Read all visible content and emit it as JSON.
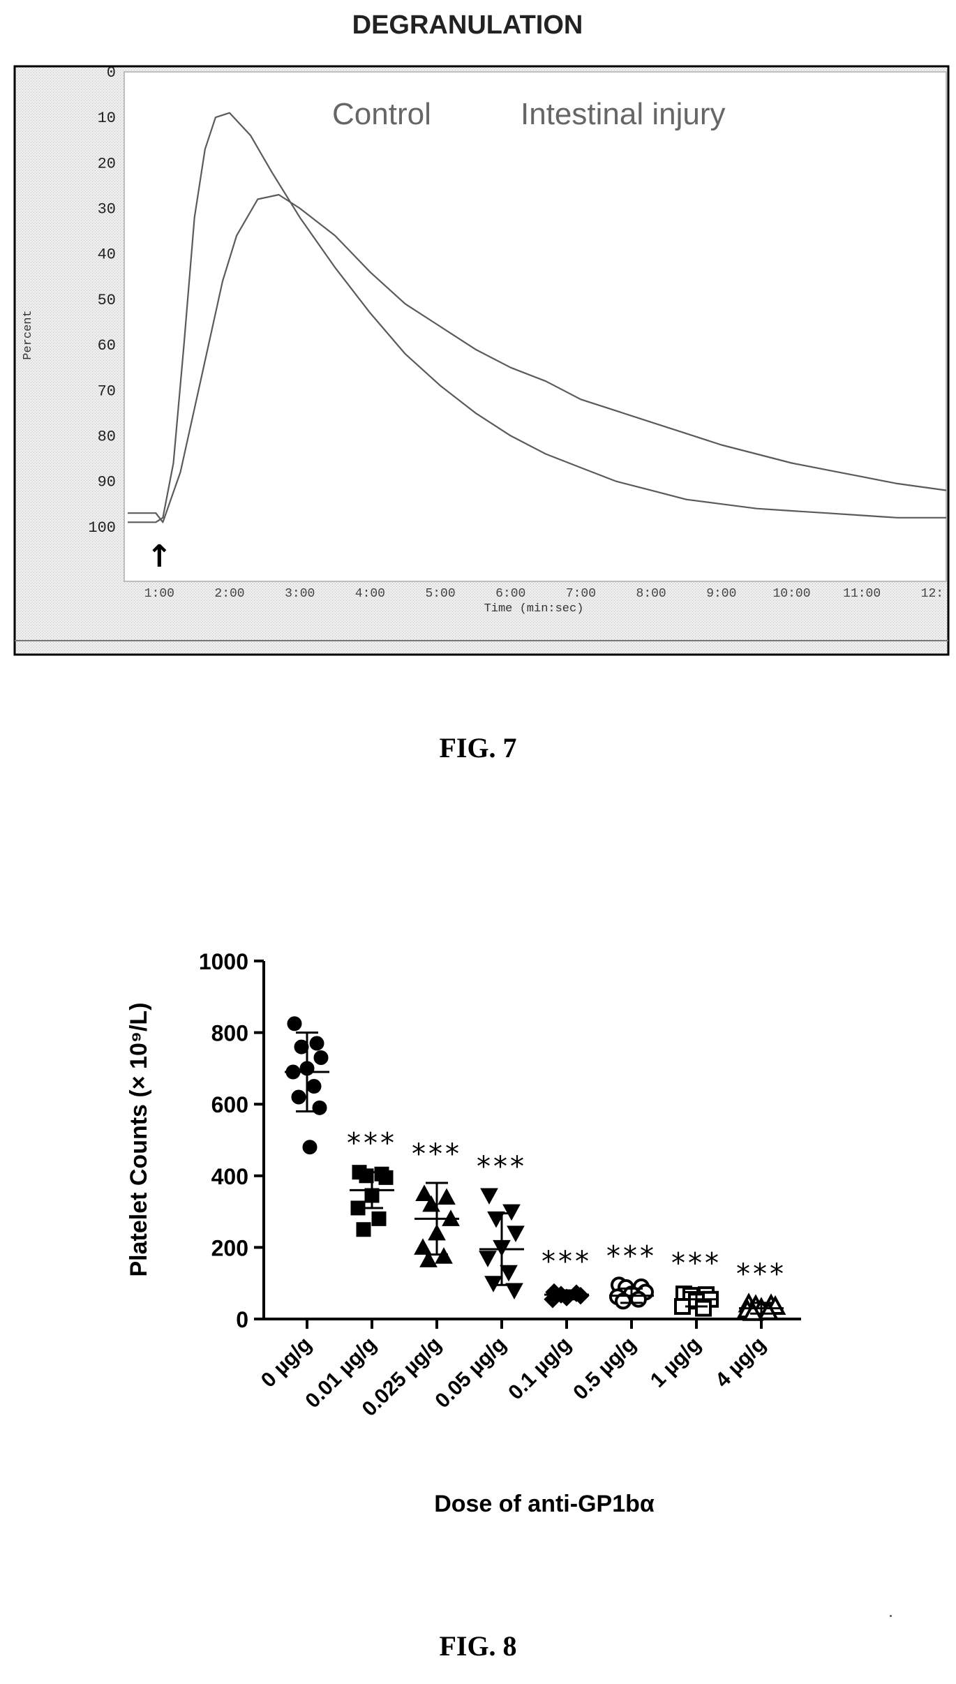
{
  "fig7": {
    "caption": "FIG. 7",
    "chart_data": {
      "type": "line",
      "title": "DEGRANULATION",
      "xlabel": "Time (min:sec)",
      "ylabel": "Percent",
      "annotations": [
        "Control",
        "Intestinal injury"
      ],
      "xlim": [
        0.5,
        12.2
      ],
      "ylim": [
        0,
        112
      ],
      "y_reversed": true,
      "x_ticks": [
        1,
        2,
        3,
        4,
        5,
        6,
        7,
        8,
        9,
        10,
        11,
        12
      ],
      "x_tick_labels": [
        "1:00",
        "2:00",
        "3:00",
        "4:00",
        "5:00",
        "6:00",
        "7:00",
        "8:00",
        "9:00",
        "10:00",
        "11:00",
        "12:"
      ],
      "y_ticks": [
        0,
        10,
        20,
        30,
        40,
        50,
        60,
        70,
        80,
        90,
        100
      ],
      "y_tick_labels": [
        "0",
        "10",
        "20",
        "30",
        "40",
        "50",
        "60",
        "70",
        "80",
        "90",
        "100"
      ],
      "marker_label": "↑",
      "marker_x": 1.0,
      "series": [
        {
          "x": [
            0.55,
            0.8,
            0.95,
            1.05,
            1.2,
            1.35,
            1.5,
            1.65,
            1.8,
            2.0,
            2.3,
            2.6,
            3.0,
            3.5,
            4.0,
            4.5,
            5.0,
            5.5,
            6.0,
            6.5,
            7.0,
            7.5,
            8.0,
            8.5,
            9.0,
            9.5,
            10.0,
            10.5,
            11.0,
            11.5,
            12.2
          ],
          "y": [
            99,
            99,
            99,
            98,
            86,
            60,
            32,
            17,
            10,
            9,
            14,
            22,
            32,
            43,
            53,
            62,
            69,
            75,
            80,
            84,
            87,
            90,
            92,
            94,
            95,
            96,
            96.5,
            97,
            97.5,
            98,
            98
          ]
        },
        {
          "x": [
            0.55,
            0.8,
            0.95,
            1.05,
            1.3,
            1.6,
            1.9,
            2.1,
            2.4,
            2.7,
            3.0,
            3.5,
            4.0,
            4.5,
            5.0,
            5.5,
            6.0,
            6.5,
            7.0,
            7.5,
            8.0,
            8.5,
            9.0,
            9.5,
            10.0,
            10.5,
            11.0,
            11.5,
            12.2
          ],
          "y": [
            97,
            97,
            97,
            99,
            88,
            67,
            46,
            36,
            28,
            27,
            30,
            36,
            44,
            51,
            56,
            61,
            65,
            68,
            72,
            74.5,
            77,
            79.5,
            82,
            84,
            86,
            87.5,
            89,
            90.5,
            92
          ]
        }
      ]
    }
  },
  "fig8": {
    "caption": "FIG. 8",
    "chart_data": {
      "type": "scatter",
      "xlabel": "Dose of anti-GP1bα",
      "ylabel": "Platelet Counts (× 10⁹/L)",
      "ylim": [
        0,
        1000
      ],
      "y_ticks": [
        0,
        200,
        400,
        600,
        800,
        1000
      ],
      "y_tick_labels": [
        "0",
        "200",
        "400",
        "600",
        "800",
        "1000"
      ],
      "categories": [
        "0 µg/g",
        "0.01 µg/g",
        "0.025 µg/g",
        "0.05 µg/g",
        "0.1 µg/g",
        "0.5 µg/g",
        "1 µg/g",
        "4 µg/g"
      ],
      "significance": [
        "",
        "***",
        "***",
        "***",
        "***",
        "***",
        "***",
        "***"
      ],
      "mean": [
        690,
        360,
        280,
        195,
        68,
        65,
        55,
        30
      ],
      "sd_low": [
        580,
        310,
        180,
        95,
        55,
        45,
        35,
        15
      ],
      "sd_high": [
        800,
        410,
        380,
        295,
        80,
        85,
        75,
        45
      ],
      "points": [
        [
          825,
          770,
          760,
          730,
          700,
          690,
          650,
          620,
          590,
          480
        ],
        [
          410,
          405,
          400,
          395,
          345,
          310,
          280,
          250
        ],
        [
          350,
          340,
          320,
          280,
          240,
          200,
          175,
          165
        ],
        [
          345,
          300,
          280,
          240,
          200,
          170,
          130,
          100,
          80
        ],
        [
          75,
          72,
          68,
          65,
          60,
          55
        ],
        [
          95,
          90,
          88,
          75,
          70,
          62,
          55,
          50
        ],
        [
          70,
          68,
          66,
          55,
          50,
          35,
          30
        ],
        [
          42,
          40,
          38,
          35,
          30,
          25,
          20,
          18
        ]
      ],
      "markers": [
        "circle",
        "square",
        "triangle",
        "triangle-down",
        "diamond",
        "circle-open",
        "square-open",
        "triangle-open"
      ]
    }
  }
}
